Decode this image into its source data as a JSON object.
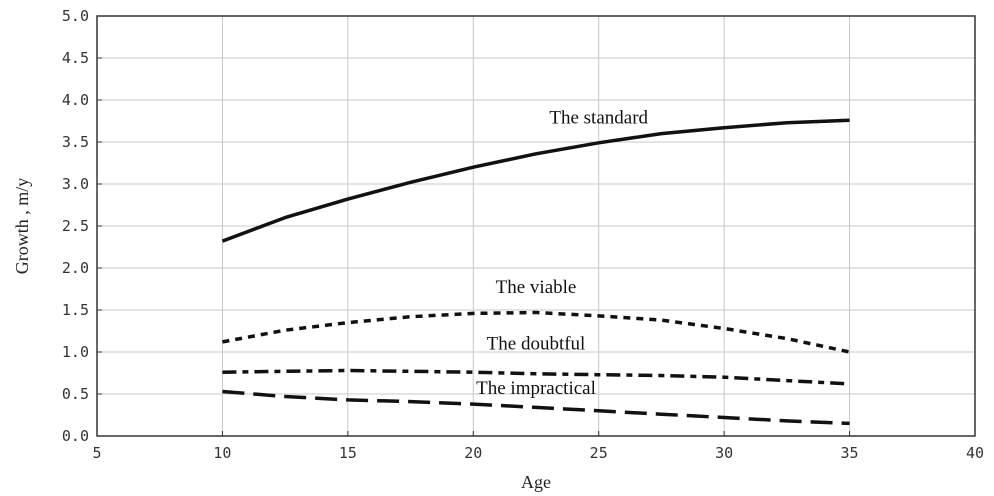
{
  "chart_data": {
    "type": "line",
    "title": "",
    "xlabel": "Age",
    "ylabel": "Growth , m/y",
    "xlim": [
      5,
      40
    ],
    "ylim": [
      0.0,
      5.0
    ],
    "grid": true,
    "x_ticks": [
      "5",
      "10",
      "15",
      "20",
      "25",
      "30",
      "35",
      "40"
    ],
    "y_ticks": [
      "0.0",
      "0.5",
      "1.0",
      "1.5",
      "2.0",
      "2.5",
      "3.0",
      "3.5",
      "4.0",
      "4.5",
      "5.0"
    ],
    "x": [
      10,
      12.5,
      15,
      17.5,
      20,
      22.5,
      25,
      27.5,
      30,
      32.5,
      35
    ],
    "series": [
      {
        "name": "The standard",
        "values": [
          2.32,
          2.6,
          2.82,
          3.02,
          3.2,
          3.36,
          3.49,
          3.6,
          3.67,
          3.73,
          3.76
        ],
        "style": "solid"
      },
      {
        "name": "The viable",
        "values": [
          1.12,
          1.26,
          1.35,
          1.42,
          1.46,
          1.47,
          1.43,
          1.38,
          1.28,
          1.16,
          1.0
        ],
        "style": "dotted"
      },
      {
        "name": "The doubtful",
        "values": [
          0.76,
          0.77,
          0.78,
          0.77,
          0.76,
          0.74,
          0.73,
          0.72,
          0.7,
          0.66,
          0.62
        ],
        "style": "dash-dot"
      },
      {
        "name": "The impractical",
        "values": [
          0.53,
          0.47,
          0.43,
          0.41,
          0.38,
          0.34,
          0.3,
          0.26,
          0.22,
          0.18,
          0.15
        ],
        "style": "long-dash"
      }
    ]
  }
}
